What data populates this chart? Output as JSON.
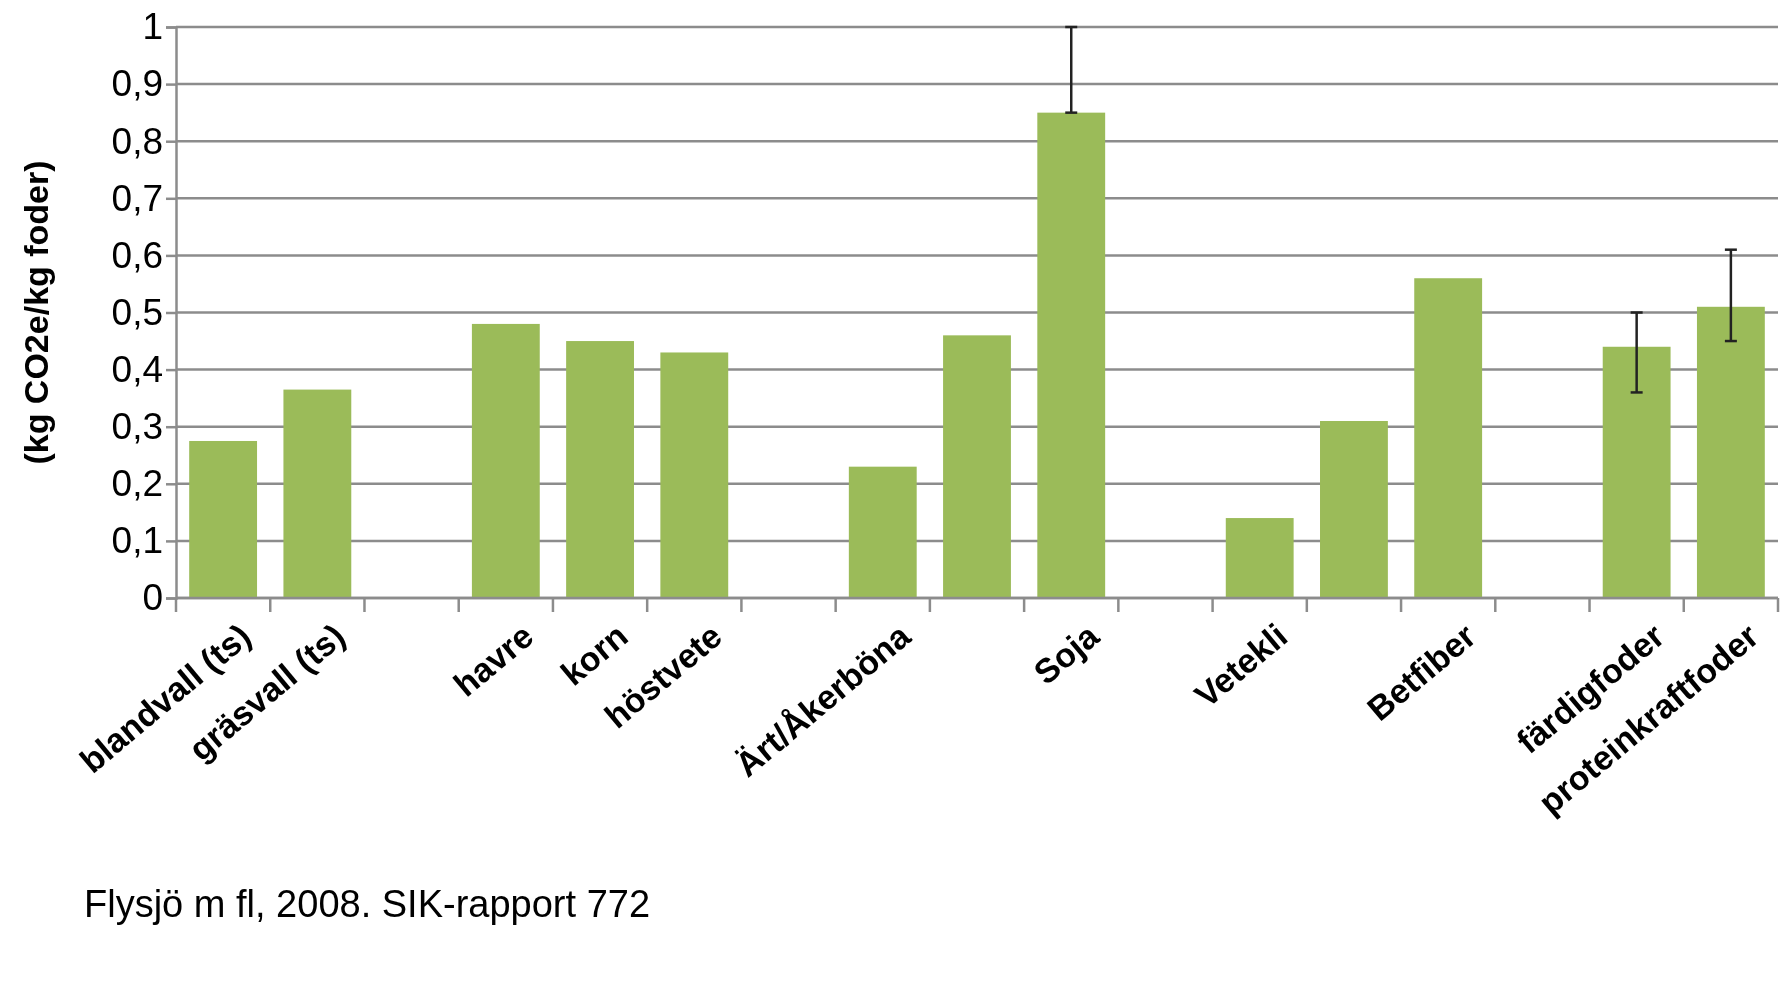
{
  "chart_data": {
    "type": "bar",
    "ylabel": "(kg CO2e/kg foder)",
    "categories": [
      "blandvall (ts)",
      "gräsvall (ts)",
      null,
      "havre",
      "korn",
      "höstvete",
      null,
      "Ärt/Åkerböna",
      null,
      "Soja",
      null,
      "Vetekli",
      null,
      "Betfiber",
      null,
      "färdigfoder",
      "proteinkraftfoder"
    ],
    "values": [
      0.275,
      0.365,
      null,
      0.48,
      0.45,
      0.43,
      null,
      0.23,
      0.46,
      0.85,
      null,
      0.14,
      0.31,
      0.56,
      null,
      0.44,
      0.51
    ],
    "errors": [
      null,
      null,
      null,
      null,
      null,
      null,
      null,
      null,
      null,
      [
        0.85,
        1.0
      ],
      null,
      null,
      null,
      null,
      null,
      [
        0.36,
        0.5
      ],
      [
        0.45,
        0.61
      ]
    ],
    "color": "#9bbb59",
    "ylim": [
      0,
      1
    ],
    "yticks": [
      0,
      {
        "value": 0.1,
        "label": "0,1"
      },
      {
        "value": 0.2,
        "label": "0,2"
      },
      {
        "value": 0.3,
        "label": "0,3"
      },
      {
        "value": 0.4,
        "label": "0,4"
      },
      {
        "value": 0.5,
        "label": "0,5"
      },
      {
        "value": 0.6,
        "label": "0,6"
      },
      {
        "value": 0.7,
        "label": "0,7"
      },
      {
        "value": 0.8,
        "label": "0,8"
      },
      {
        "value": 0.9,
        "label": "0,9"
      },
      1
    ],
    "grid": "y",
    "annotations": [
      "Flysjö m fl, 2008. SIK-rapport 772"
    ]
  }
}
